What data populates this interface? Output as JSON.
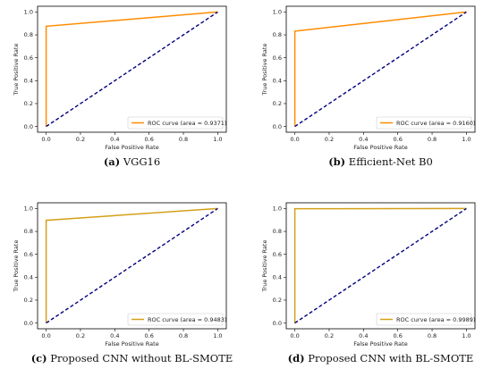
{
  "chart_data": [
    {
      "type": "line",
      "caption_letter": "(a)",
      "caption_text": "VGG16",
      "xlabel": "False Positive Rate",
      "ylabel": "True Positive Rate",
      "xlim": [
        -0.05,
        1.05
      ],
      "ylim": [
        -0.05,
        1.05
      ],
      "xticks": [
        "0.0",
        "0.2",
        "0.4",
        "0.6",
        "0.8",
        "1.0"
      ],
      "yticks": [
        "0.0",
        "0.2",
        "0.4",
        "0.6",
        "0.8",
        "1.0"
      ],
      "legend_position": "lower-right",
      "series": [
        {
          "name": "ROC curve (area = 0.9371)",
          "color": "#ff8c00",
          "style": "solid",
          "x": [
            0.0,
            0.0,
            1.0
          ],
          "y": [
            0.0,
            0.875,
            1.0
          ]
        },
        {
          "color": "#000080",
          "style": "dashed",
          "x": [
            0.0,
            1.0
          ],
          "y": [
            0.0,
            1.0
          ]
        }
      ]
    },
    {
      "type": "line",
      "caption_letter": "(b)",
      "caption_text": "Efficient-Net B0",
      "xlabel": "False Positive Rate",
      "ylabel": "True Positive Rate",
      "xlim": [
        -0.05,
        1.05
      ],
      "ylim": [
        -0.05,
        1.05
      ],
      "xticks": [
        "0.0",
        "0.2",
        "0.4",
        "0.6",
        "0.8",
        "1.0"
      ],
      "yticks": [
        "0.0",
        "0.2",
        "0.4",
        "0.6",
        "0.8",
        "1.0"
      ],
      "legend_position": "lower-right",
      "series": [
        {
          "name": "ROC curve (area = 0.9160)",
          "color": "#ff8c00",
          "style": "solid",
          "x": [
            0.0,
            0.0,
            1.0
          ],
          "y": [
            0.0,
            0.832,
            1.0
          ]
        },
        {
          "color": "#000080",
          "style": "dashed",
          "x": [
            0.0,
            1.0
          ],
          "y": [
            0.0,
            1.0
          ]
        }
      ]
    },
    {
      "type": "line",
      "caption_letter": "(c)",
      "caption_text": "Proposed CNN without BL-SMOTE",
      "xlabel": "False Positive Rate",
      "ylabel": "True Positive Rate",
      "xlim": [
        -0.05,
        1.05
      ],
      "ylim": [
        -0.05,
        1.05
      ],
      "xticks": [
        "0.0",
        "0.2",
        "0.4",
        "0.6",
        "0.8",
        "1.0"
      ],
      "yticks": [
        "0.0",
        "0.2",
        "0.4",
        "0.6",
        "0.8",
        "1.0"
      ],
      "legend_position": "lower-right",
      "series": [
        {
          "name": "ROC curve (area = 0.9483)",
          "color": "#d4a017",
          "style": "solid",
          "x": [
            0.0,
            0.0,
            1.0
          ],
          "y": [
            0.0,
            0.897,
            1.0
          ]
        },
        {
          "color": "#000080",
          "style": "dashed",
          "x": [
            0.0,
            1.0
          ],
          "y": [
            0.0,
            1.0
          ]
        }
      ]
    },
    {
      "type": "line",
      "caption_letter": "(d)",
      "caption_text": "Proposed CNN with BL-SMOTE",
      "xlabel": "False Positive Rate",
      "ylabel": "True Positive Rate",
      "xlim": [
        -0.05,
        1.05
      ],
      "ylim": [
        -0.05,
        1.05
      ],
      "xticks": [
        "0.0",
        "0.2",
        "0.4",
        "0.6",
        "0.8",
        "1.0"
      ],
      "yticks": [
        "0.0",
        "0.2",
        "0.4",
        "0.6",
        "0.8",
        "1.0"
      ],
      "legend_position": "lower-right",
      "series": [
        {
          "name": "ROC curve (area = 0.9989)",
          "color": "#d4a017",
          "style": "solid",
          "x": [
            0.0,
            0.0,
            1.0
          ],
          "y": [
            0.0,
            0.998,
            1.0
          ]
        },
        {
          "color": "#000080",
          "style": "dashed",
          "x": [
            0.0,
            1.0
          ],
          "y": [
            0.0,
            1.0
          ]
        }
      ]
    }
  ]
}
